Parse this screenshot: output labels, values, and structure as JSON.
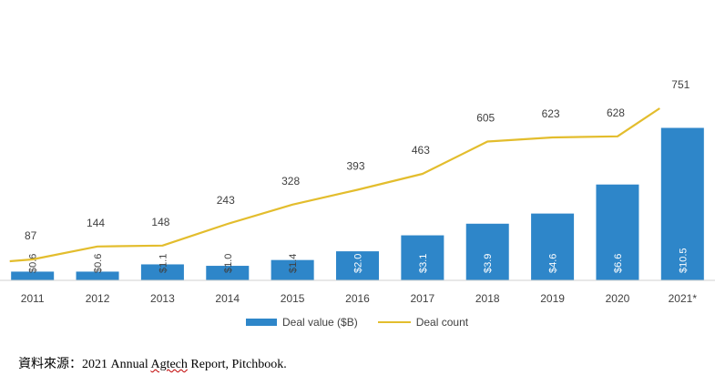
{
  "chart_data": {
    "type": "bar",
    "categories": [
      "2011",
      "2012",
      "2013",
      "2014",
      "2015",
      "2016",
      "2017",
      "2018",
      "2019",
      "2020",
      "2021*"
    ],
    "series": [
      {
        "name": "Deal value ($B)",
        "type": "bar",
        "values": [
          0.6,
          0.6,
          1.1,
          1.0,
          1.4,
          2.0,
          3.1,
          3.9,
          4.6,
          6.6,
          10.5
        ],
        "labels": [
          "$0.6",
          "$0.6",
          "$1.1",
          "$1.0",
          "$1.4",
          "$2.0",
          "$3.1",
          "$3.9",
          "$4.6",
          "$6.6",
          "$10.5"
        ],
        "color": "#2e86c9"
      },
      {
        "name": "Deal count",
        "type": "line",
        "values": [
          87,
          144,
          148,
          243,
          328,
          393,
          463,
          605,
          623,
          628,
          751
        ],
        "labels": [
          "87",
          "144",
          "148",
          "243",
          "328",
          "393",
          "463",
          "605",
          "623",
          "628",
          "751"
        ],
        "color": "#e3bd2d"
      }
    ],
    "grid": false,
    "legend": "bottom-center"
  },
  "legend": {
    "bar_label": "Deal value ($B)",
    "line_label": "Deal count"
  },
  "source": {
    "prefix": "資料來源：2021 Annual ",
    "underlined": "Agtech",
    "suffix": " Report, Pitchbook."
  }
}
